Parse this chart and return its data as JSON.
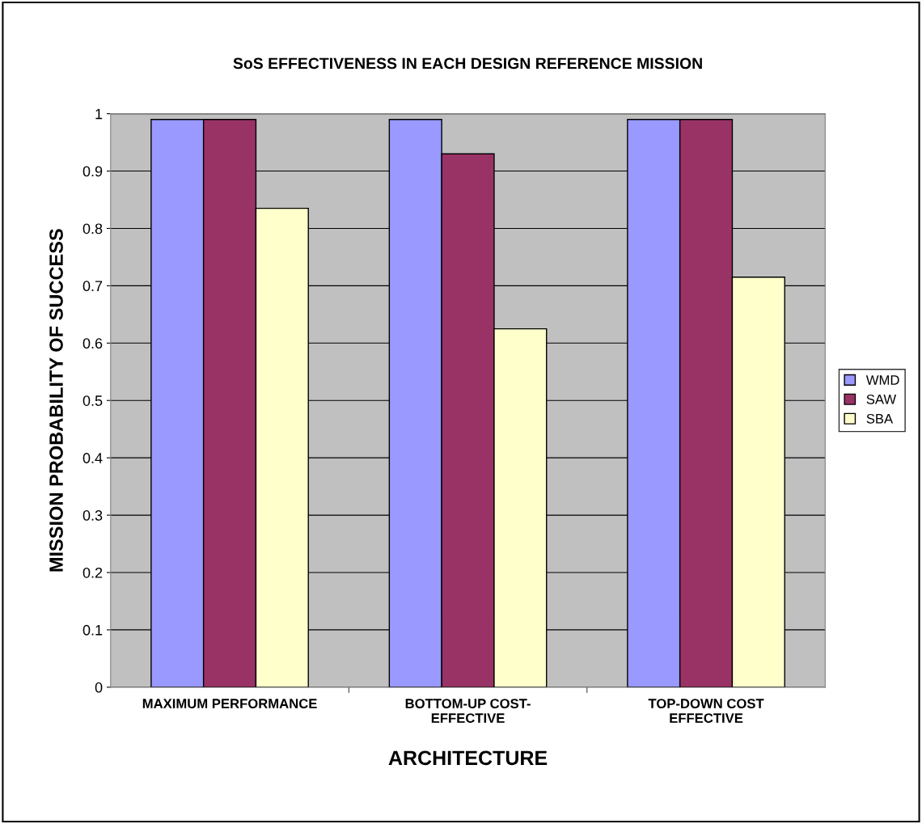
{
  "chart_data": {
    "type": "bar",
    "title": "SoS EFFECTIVENESS IN EACH DESIGN REFERENCE MISSION",
    "xlabel": "ARCHITECTURE",
    "ylabel": "MISSION PROBABILITY OF SUCCESS",
    "categories": [
      "MAXIMUM PERFORMANCE",
      "BOTTOM-UP COST-\nEFFECTIVE",
      "TOP-DOWN COST\nEFFECTIVE"
    ],
    "series": [
      {
        "name": "WMD",
        "color": "#9999ff",
        "values": [
          0.99,
          0.99,
          0.99
        ]
      },
      {
        "name": "SAW",
        "color": "#993366",
        "values": [
          0.99,
          0.93,
          0.99
        ]
      },
      {
        "name": "SBA",
        "color": "#ffffcc",
        "values": [
          0.835,
          0.625,
          0.715
        ]
      }
    ],
    "ylim": [
      0,
      1
    ],
    "yticks": [
      0,
      0.1,
      0.2,
      0.3,
      0.4,
      0.5,
      0.6,
      0.7,
      0.8,
      0.9,
      1
    ],
    "grid": "y",
    "legend": "right"
  }
}
